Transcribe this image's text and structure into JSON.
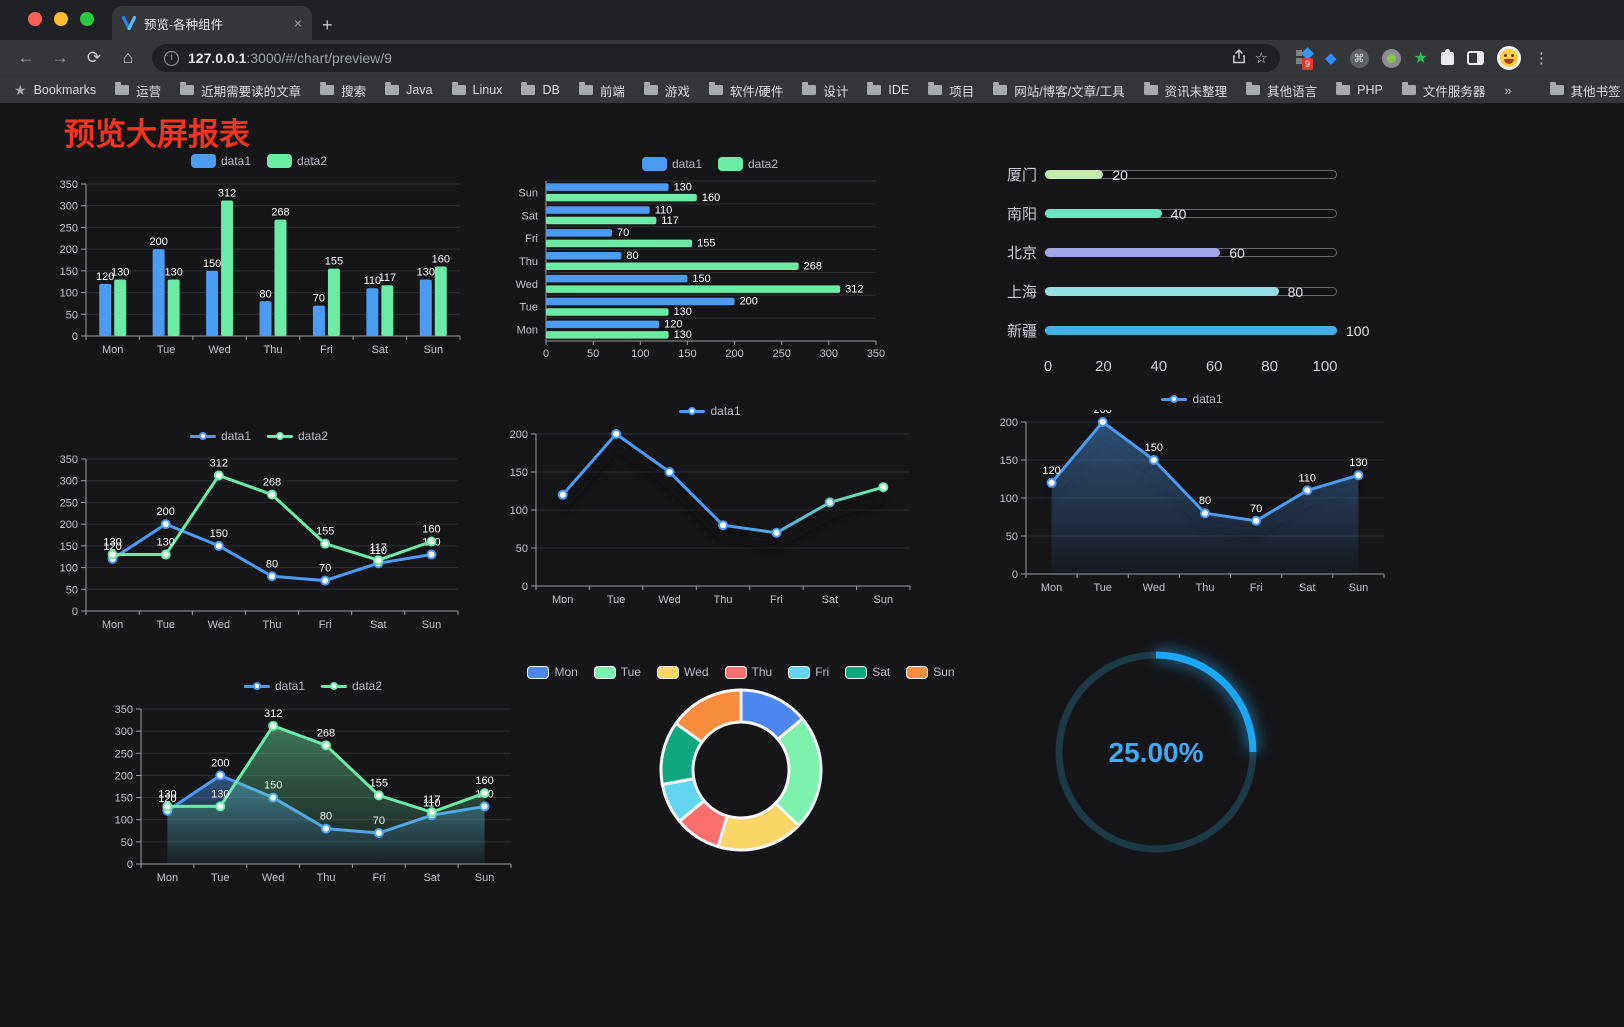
{
  "browser": {
    "tab": {
      "title": "预览-各种组件",
      "close": "×",
      "new_tab": "+"
    },
    "nav": {
      "url_host": "127.0.0.1",
      "url_port_path": ":3000/#/chart/preview/9"
    },
    "extensions_badge": "9",
    "bookmarks_bar": {
      "bookmarks_label": "Bookmarks",
      "folders": [
        "运营",
        "近期需要读的文章",
        "搜索",
        "Java",
        "Linux",
        "DB",
        "前端",
        "游戏",
        "软件/硬件",
        "设计",
        "IDE",
        "项目",
        "网站/博客/文章/工具",
        "资讯未整理",
        "其他语言",
        "PHP",
        "文件服务器"
      ],
      "overflow": "»",
      "other_bookmarks": "其他书签"
    }
  },
  "page": {
    "title": "预览大屏报表",
    "title_color": "#f5321f",
    "background": "#161619"
  },
  "palette": {
    "text": "#C2C2CC",
    "grid": "#2F2F36",
    "axis": "#9A9AA5",
    "value_label": "#FFFFFF"
  },
  "chart_data": [
    {
      "id": "bar-vertical",
      "type": "bar",
      "categories": [
        "Mon",
        "Tue",
        "Wed",
        "Thu",
        "Fri",
        "Sat",
        "Sun"
      ],
      "series": [
        {
          "name": "data1",
          "color": "#4C9BF2",
          "values": [
            120,
            200,
            150,
            80,
            70,
            110,
            130
          ]
        },
        {
          "name": "data2",
          "color": "#6CEBA6",
          "values": [
            130,
            130,
            312,
            268,
            155,
            117,
            160
          ]
        }
      ],
      "ylim": [
        0,
        350
      ],
      "yticks": [
        0,
        50,
        100,
        150,
        200,
        250,
        300,
        350
      ],
      "value_labels": true,
      "legend_position": "top"
    },
    {
      "id": "bar-horizontal",
      "type": "bar-horizontal",
      "categories": [
        "Mon",
        "Tue",
        "Wed",
        "Thu",
        "Fri",
        "Sat",
        "Sun"
      ],
      "series": [
        {
          "name": "data1",
          "color": "#4C9BF2",
          "values": [
            120,
            200,
            150,
            80,
            70,
            110,
            130
          ]
        },
        {
          "name": "data2",
          "color": "#6CEBA6",
          "values": [
            130,
            130,
            312,
            268,
            155,
            117,
            160
          ]
        }
      ],
      "xlim": [
        0,
        350
      ],
      "xticks": [
        0,
        50,
        100,
        150,
        200,
        250,
        300,
        350
      ],
      "value_labels": true,
      "legend_position": "top"
    },
    {
      "id": "city-progress",
      "type": "progress",
      "max": 100,
      "xticks": [
        0,
        20,
        40,
        60,
        80,
        100
      ],
      "items": [
        {
          "label": "厦门",
          "value": 20,
          "color": "#C4EBAD"
        },
        {
          "label": "南阳",
          "value": 40,
          "color": "#6BE6C1"
        },
        {
          "label": "北京",
          "value": 60,
          "color": "#A0A7E6"
        },
        {
          "label": "上海",
          "value": 80,
          "color": "#96DEE8"
        },
        {
          "label": "新疆",
          "value": 100,
          "color": "#3FB1E3"
        }
      ]
    },
    {
      "id": "line-dual",
      "type": "line",
      "categories": [
        "Mon",
        "Tue",
        "Wed",
        "Thu",
        "Fri",
        "Sat",
        "Sun"
      ],
      "series": [
        {
          "name": "data1",
          "color": "#4C9BF2",
          "values": [
            120,
            200,
            150,
            80,
            70,
            110,
            130
          ]
        },
        {
          "name": "data2",
          "color": "#6CEBA6",
          "values": [
            130,
            130,
            312,
            268,
            155,
            117,
            160
          ]
        }
      ],
      "ylim": [
        0,
        350
      ],
      "yticks": [
        0,
        50,
        100,
        150,
        200,
        250,
        300,
        350
      ],
      "value_labels": true,
      "markers": true
    },
    {
      "id": "line-gradient",
      "type": "line",
      "categories": [
        "Mon",
        "Tue",
        "Wed",
        "Thu",
        "Fri",
        "Sat",
        "Sun"
      ],
      "series": [
        {
          "name": "data1",
          "color": "#4C9BF2",
          "color_end": "#6CEBA6",
          "values": [
            120,
            200,
            150,
            80,
            70,
            110,
            130
          ]
        }
      ],
      "ylim": [
        0,
        200
      ],
      "yticks": [
        0,
        50,
        100,
        150,
        200
      ],
      "value_labels": false,
      "markers": true,
      "shadow": true
    },
    {
      "id": "line-area",
      "type": "line",
      "categories": [
        "Mon",
        "Tue",
        "Wed",
        "Thu",
        "Fri",
        "Sat",
        "Sun"
      ],
      "series": [
        {
          "name": "data1",
          "color": "#4C9BF2",
          "values": [
            120,
            200,
            150,
            80,
            70,
            110,
            130
          ],
          "area": true
        }
      ],
      "ylim": [
        0,
        200
      ],
      "yticks": [
        0,
        50,
        100,
        150,
        200
      ],
      "value_labels": true,
      "markers": true,
      "shadow": true
    },
    {
      "id": "line-dual-area",
      "type": "line",
      "categories": [
        "Mon",
        "Tue",
        "Wed",
        "Thu",
        "Fri",
        "Sat",
        "Sun"
      ],
      "series": [
        {
          "name": "data1",
          "color": "#4C9BF2",
          "values": [
            120,
            200,
            150,
            80,
            70,
            110,
            130
          ],
          "area": true
        },
        {
          "name": "data2",
          "color": "#6CEBA6",
          "values": [
            130,
            130,
            312,
            268,
            155,
            117,
            160
          ],
          "area": true
        }
      ],
      "ylim": [
        0,
        350
      ],
      "yticks": [
        0,
        50,
        100,
        150,
        200,
        250,
        300,
        350
      ],
      "value_labels": true,
      "markers": true
    },
    {
      "id": "donut",
      "type": "pie",
      "inner_radius_ratio": 0.6,
      "items": [
        {
          "name": "Mon",
          "value": 120,
          "color": "#4C86EE"
        },
        {
          "name": "Tue",
          "value": 200,
          "color": "#7DF2AE"
        },
        {
          "name": "Wed",
          "value": 150,
          "color": "#F8D564"
        },
        {
          "name": "Thu",
          "value": 80,
          "color": "#FA6E6E"
        },
        {
          "name": "Fri",
          "value": 70,
          "color": "#63D4F2"
        },
        {
          "name": "Sat",
          "value": 110,
          "color": "#0FA87E"
        },
        {
          "name": "Sun",
          "value": 130,
          "color": "#F88C3D"
        }
      ]
    },
    {
      "id": "gauge",
      "type": "gauge",
      "value": 25,
      "max": 100,
      "display": "25.00%",
      "arc_color": "#1AA7F5",
      "track_color": "#1C3A46",
      "text_color": "#3FA9F2"
    }
  ]
}
